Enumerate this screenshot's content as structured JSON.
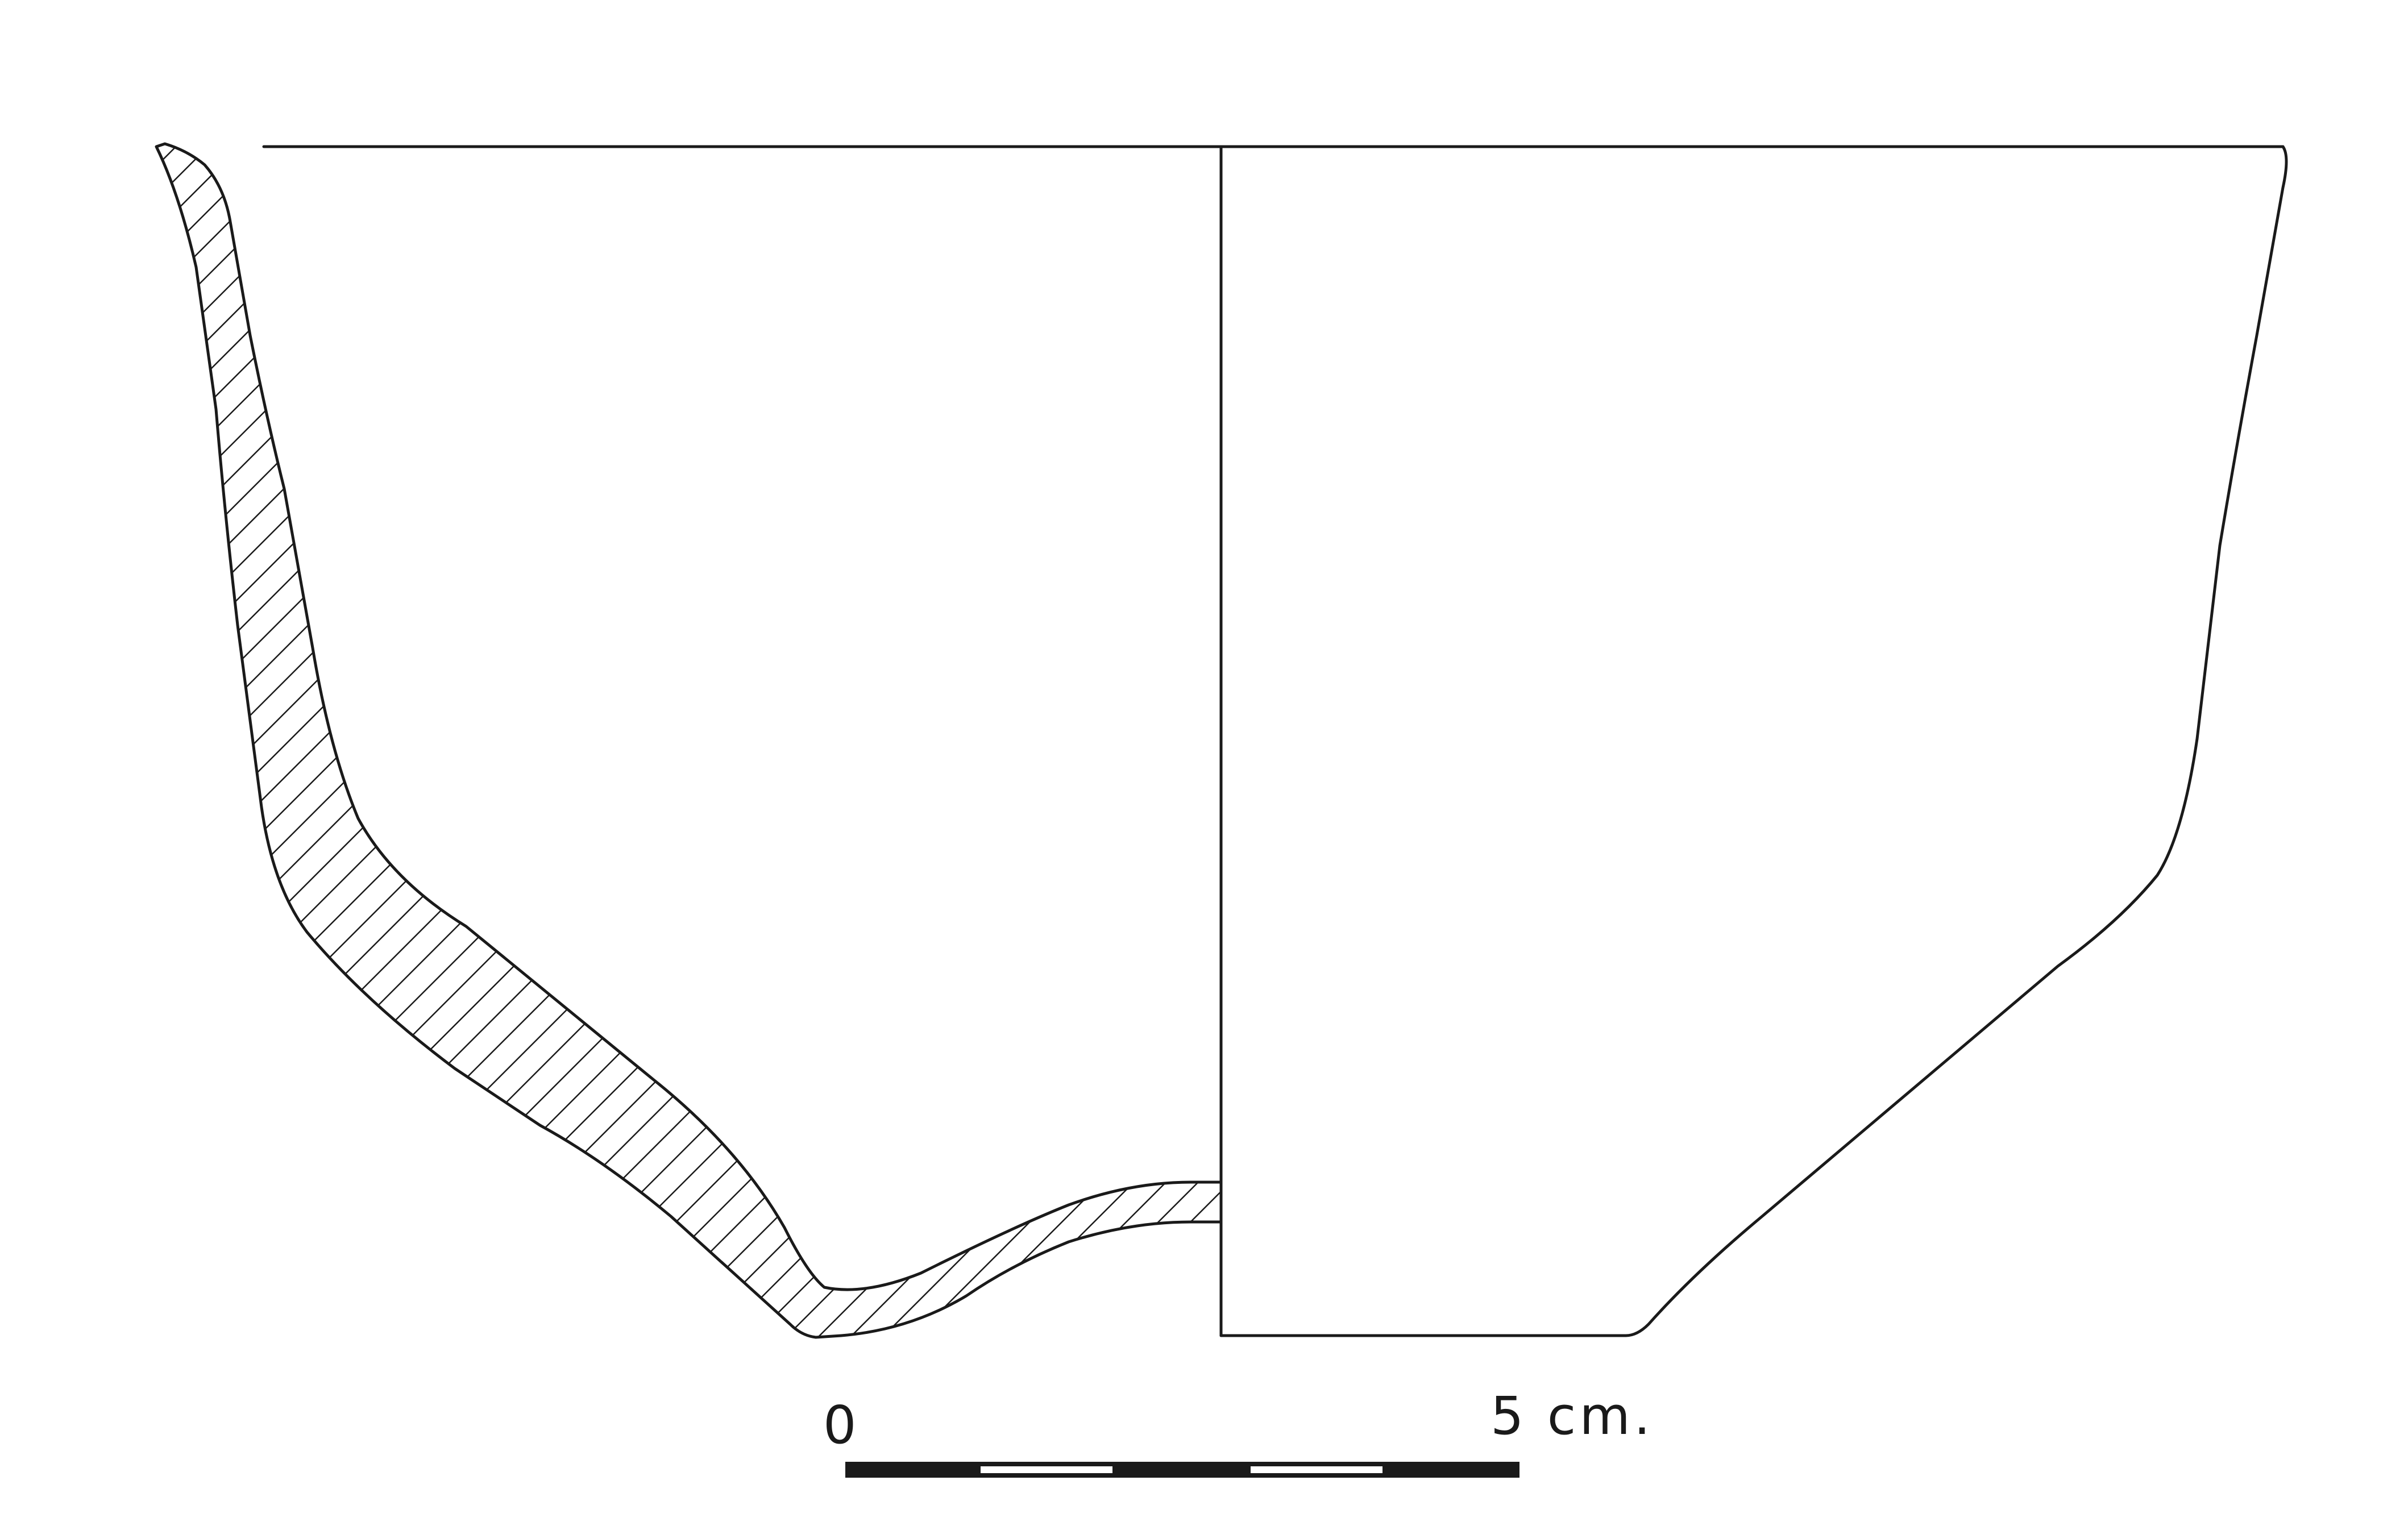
{
  "figure": {
    "scale_bar": {
      "start_label": "0",
      "end_label": "5 cm.",
      "segments": 5
    },
    "colors": {
      "ink": "#1a1a1a",
      "paper": "#ffffff",
      "scale_dark": "#1a1a1a",
      "scale_light": "#ffffff"
    }
  }
}
